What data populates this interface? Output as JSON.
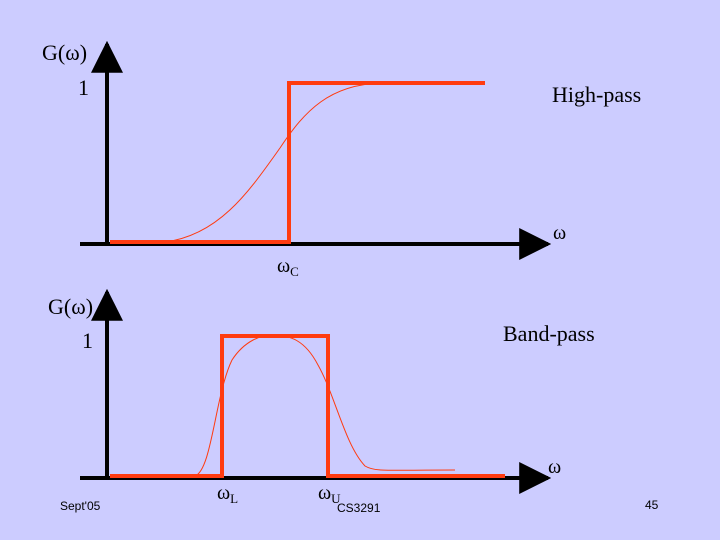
{
  "top_panel": {
    "y_label": "G(ω)",
    "y_tick": "1",
    "x_label": "ω",
    "cutoff_label": "ω",
    "cutoff_sub": "C",
    "title": "High-pass"
  },
  "bottom_panel": {
    "y_label": "G(ω)",
    "y_tick": "1",
    "x_label": "ω",
    "lower_label": "ω",
    "lower_sub": "L",
    "upper_label": "ω",
    "upper_sub": "U",
    "title": "Band-pass"
  },
  "footer": {
    "date": "Sept'05",
    "course": "CS3291",
    "page": "45"
  },
  "colors": {
    "background": "#ccccff",
    "ideal_response": "#ff3b10",
    "real_response": "#ff3b10",
    "axes": "#000000"
  }
}
